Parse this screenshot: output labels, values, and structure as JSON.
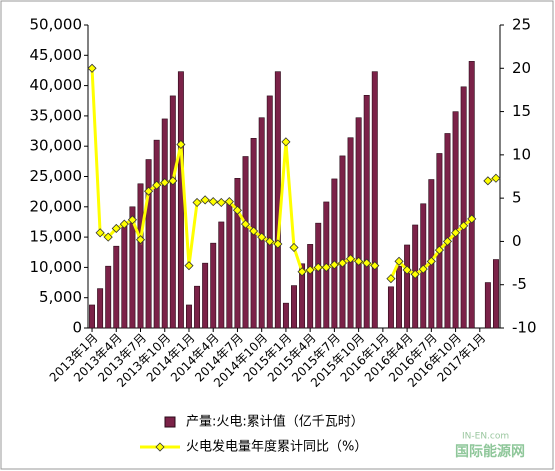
{
  "chart_data": {
    "type": "bar_line",
    "categories": [
      "2013年1月",
      null,
      null,
      "2013年4月",
      null,
      null,
      "2013年7月",
      null,
      null,
      "2013年10月",
      null,
      null,
      "2014年1月",
      null,
      null,
      "2014年4月",
      null,
      null,
      "2014年7月",
      null,
      null,
      "2014年10月",
      null,
      null,
      "2015年1月",
      null,
      null,
      "2015年4月",
      null,
      null,
      "2015年7月",
      null,
      null,
      "2015年10月",
      null,
      null,
      "2016年1月",
      null,
      null,
      "2016年4月",
      null,
      null,
      "2016年7月",
      null,
      null,
      "2016年10月",
      null,
      null,
      "2017年1月",
      null,
      null
    ],
    "series": [
      {
        "name": "产量:火电:累计值（亿千瓦时）",
        "color": "#7b2248",
        "type": "bar",
        "values": [
          3800,
          6500,
          10200,
          13500,
          16800,
          20000,
          23800,
          27800,
          31000,
          34500,
          38300,
          42300,
          3800,
          6900,
          10700,
          14000,
          17500,
          20800,
          24700,
          28300,
          31300,
          34700,
          38300,
          42300,
          4100,
          7000,
          10600,
          13800,
          17300,
          20800,
          24600,
          28400,
          31400,
          34700,
          38400,
          42300,
          null,
          6800,
          10200,
          13700,
          17000,
          20500,
          24500,
          28800,
          32100,
          35700,
          39800,
          44000,
          null,
          7500,
          11300
        ]
      },
      {
        "name": "火电发电量年度累计同比（%）",
        "color": "#ffff00",
        "type": "line",
        "axis": "y2",
        "values": [
          20,
          1,
          0.5,
          1.5,
          2,
          2.5,
          0.2,
          5.8,
          6.5,
          6.8,
          7,
          11.2,
          -2.8,
          4.5,
          4.8,
          4.6,
          4.5,
          4.6,
          3.6,
          2,
          1.2,
          0.5,
          0,
          -0.3,
          11.5,
          -0.7,
          -3.5,
          -3.3,
          -3,
          -3,
          -2.7,
          -2.5,
          -2,
          -2.3,
          -2.5,
          -2.8,
          null,
          -4.3,
          -2.3,
          -3.3,
          -3.8,
          -3.2,
          -2.3,
          -1,
          0,
          1,
          1.8,
          2.6,
          null,
          7,
          7.3
        ]
      }
    ],
    "ylim": [
      0,
      50000
    ],
    "yticks": [
      0,
      {
        "value": 5000,
        "label": "5,000"
      },
      {
        "value": 10000,
        "label": "10,000"
      },
      {
        "value": 15000,
        "label": "15,000"
      },
      {
        "value": 20000,
        "label": "20,000"
      },
      {
        "value": 25000,
        "label": "25,000"
      },
      {
        "value": 30000,
        "label": "30,000"
      },
      {
        "value": 35000,
        "label": "35,000"
      },
      {
        "value": 40000,
        "label": "40,000"
      },
      {
        "value": 45000,
        "label": "45,000"
      },
      {
        "value": 50000,
        "label": "50,000"
      }
    ],
    "y2lim": [
      -10,
      25
    ],
    "y2ticks": [
      -10,
      -5,
      0,
      5,
      10,
      15,
      20,
      25
    ],
    "watermark": [
      "IN-EN.com",
      "国际能源网"
    ]
  }
}
